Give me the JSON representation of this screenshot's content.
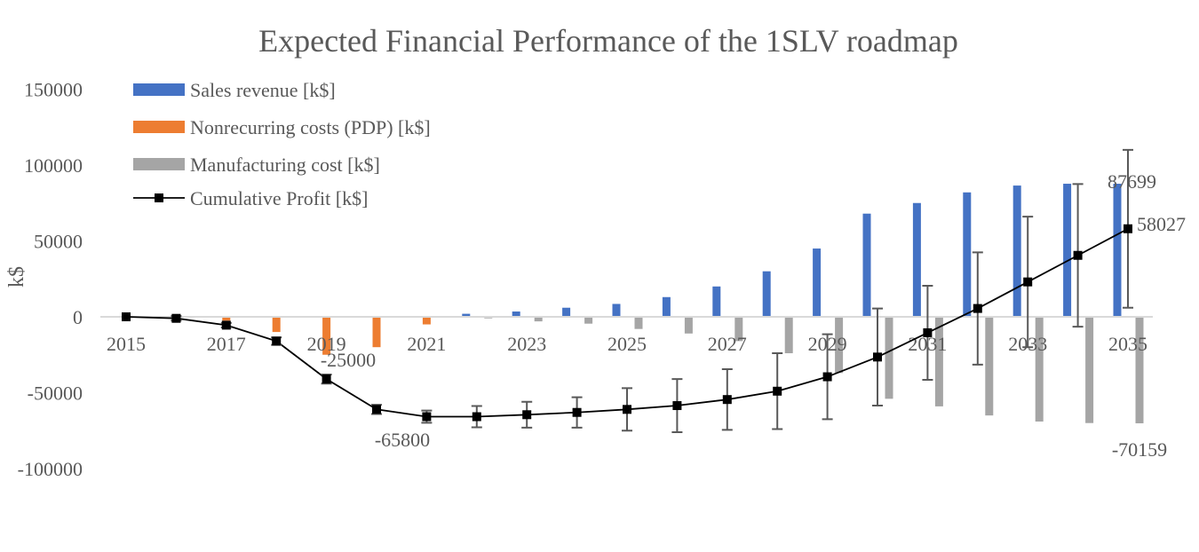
{
  "chart_data": {
    "type": "bar",
    "title": "Expected Financial Performance of the 1SLV roadmap",
    "xlabel": "",
    "ylabel": "k$",
    "ylim": [
      -100000,
      150000
    ],
    "yticks": [
      150000,
      100000,
      50000,
      0,
      -50000,
      -100000
    ],
    "ytick_labels": [
      "150000",
      "100000",
      "50000",
      "0",
      "-50000",
      "-100000"
    ],
    "x": [
      2015,
      2016,
      2017,
      2018,
      2019,
      2020,
      2021,
      2022,
      2023,
      2024,
      2025,
      2026,
      2027,
      2028,
      2029,
      2030,
      2031,
      2032,
      2033,
      2034,
      2035
    ],
    "xtick_labels": [
      "2015",
      "2017",
      "2019",
      "2021",
      "2023",
      "2025",
      "2027",
      "2029",
      "2031",
      "2033",
      "2035"
    ],
    "grid": false,
    "legend_position": "top-left",
    "series": [
      {
        "name": "Sales revenue [k$]",
        "type": "bar",
        "color": "#4472C4",
        "values": [
          0,
          0,
          0,
          0,
          0,
          0,
          0,
          2000,
          3500,
          6000,
          8500,
          13000,
          20000,
          30000,
          45000,
          68000,
          75000,
          82000,
          86500,
          87699,
          87699
        ]
      },
      {
        "name": "Nonrecurring costs (PDP) [k$]",
        "type": "bar",
        "color": "#ED7D31",
        "values": [
          0,
          0,
          -2500,
          -10000,
          -25000,
          -20000,
          -5000,
          0,
          0,
          0,
          0,
          0,
          0,
          0,
          0,
          0,
          0,
          0,
          0,
          0,
          0
        ]
      },
      {
        "name": "Manufacturing cost [k$]",
        "type": "bar",
        "color": "#A5A5A5",
        "values": [
          0,
          0,
          0,
          0,
          0,
          0,
          -500,
          -1000,
          -3000,
          -4500,
          -8000,
          -11000,
          -16000,
          -24000,
          -37000,
          -54000,
          -59000,
          -65000,
          -69000,
          -70000,
          -70159
        ]
      },
      {
        "name": "Cumulative Profit [k$]",
        "type": "line",
        "color": "#000000",
        "values": [
          0,
          -1000,
          -5500,
          -16000,
          -41000,
          -61000,
          -65800,
          -65800,
          -64500,
          -63000,
          -61000,
          -58500,
          -54500,
          -49000,
          -39500,
          -26500,
          -10500,
          5500,
          23000,
          40500,
          58027
        ],
        "error": [
          0,
          1500,
          1500,
          2500,
          3000,
          3000,
          4000,
          7000,
          8500,
          10000,
          14000,
          17500,
          20000,
          25000,
          28000,
          32000,
          31000,
          37000,
          43000,
          47000,
          52000
        ]
      }
    ],
    "annotations": [
      {
        "text": "-25000",
        "series": "Nonrecurring costs (PDP) [k$]",
        "x": 2019
      },
      {
        "text": "-65800",
        "series": "Cumulative Profit [k$]",
        "x": 2021
      },
      {
        "text": "87699",
        "series": "Sales revenue [k$]",
        "x": 2035
      },
      {
        "text": "58027",
        "series": "Cumulative Profit [k$]",
        "x": 2035
      },
      {
        "text": "-70159",
        "series": "Manufacturing cost [k$]",
        "x": 2035
      }
    ]
  }
}
